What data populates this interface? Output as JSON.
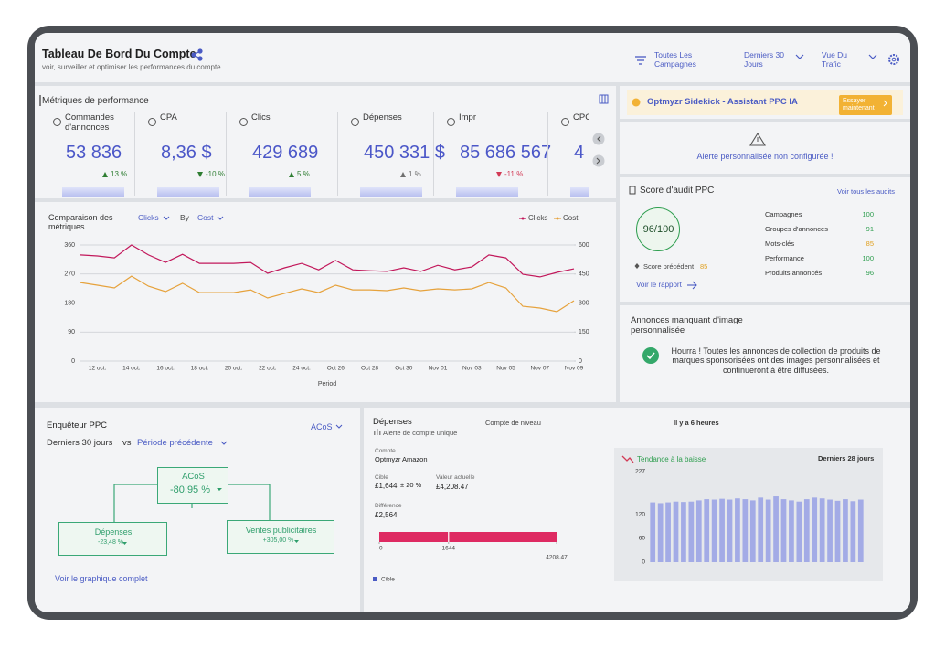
{
  "header": {
    "title": "Tableau De Bord Du Compte",
    "subtitle": "voir, surveiller et optimiser les performances du compte.",
    "filters": [
      "Toutes Les Campagnes",
      "Derniers 30 Jours",
      "Vue Du Trafic"
    ]
  },
  "metrics": {
    "title": "Métriques de performance",
    "cards": [
      {
        "label": "Commandes d'annonces",
        "value": "53 836",
        "change": "13 %",
        "direction": "up",
        "color": "#2e7d32"
      },
      {
        "label": "CPA",
        "value": "8,36 $",
        "change": "-10 %",
        "direction": "down",
        "color": "#2e7d32"
      },
      {
        "label": "Clics",
        "value": "429 689",
        "change": "5 %",
        "direction": "up",
        "color": "#2e7d32"
      },
      {
        "label": "Dépenses",
        "value": "450 331 $",
        "change": "1 %",
        "direction": "up",
        "color": "#6f6f6f"
      },
      {
        "label": "Impr",
        "value": "85 686 567",
        "change": "-11 %",
        "direction": "down",
        "color": "#d23a55"
      },
      {
        "label": "CPC",
        "value": "4"
      }
    ]
  },
  "comparison": {
    "metric": "Clicks",
    "by": "By",
    "second_metric": "Cost"
  },
  "sidekick": {
    "title": "Optmyzr Sidekick - Assistant PPC IA",
    "button": "Essayer maintenant"
  },
  "alert": {
    "text": "Alerte personnalisée non configurée !"
  },
  "audit": {
    "title": "Score d'audit PPC",
    "link": "Voir tous les audits",
    "score": "96/100",
    "previous_label": "Score précédent",
    "previous_score": 85,
    "report_link": "Voir le rapport",
    "items": [
      {
        "label": "Campagnes",
        "score": 100,
        "color": "#2e9e4f"
      },
      {
        "label": "Groupes d'annonces",
        "score": 91,
        "color": "#2e9e4f"
      },
      {
        "label": "Mots-clés",
        "score": 85,
        "color": "#e0a020"
      },
      {
        "label": "Performance",
        "score": 100,
        "color": "#2e9e4f"
      },
      {
        "label": "Produits annoncés",
        "score": 96,
        "color": "#2e9e4f"
      }
    ]
  },
  "images": {
    "title": "Annonces manquant d'image personnalisée",
    "message": "Hourra ! Toutes les annonces de collection de produits de marques sponsorisées ont des images personnalisées et continueront à être diffusées."
  },
  "investigator": {
    "title": "Enquêteur PPC",
    "metric": "ACoS",
    "period": "Derniers 30 jours",
    "vs": "vs",
    "comparison": "Période précédente",
    "root": {
      "label": "ACoS",
      "value": "-80,95 %"
    },
    "children": [
      {
        "label": "Dépenses",
        "value": "-23,48 %"
      },
      {
        "label": "Ventes publicitaires",
        "value": "+305,00 %"
      }
    ],
    "link": "Voir le graphique complet"
  },
  "spend": {
    "title": "Dépenses",
    "alert_type": "Alerte de compte unique",
    "level": "Compte de niveau",
    "updated": "Il y a 6 heures",
    "account_label": "Compte",
    "account": "Optmyzr Amazon",
    "target_label": "Cible",
    "target": "£1,644",
    "tolerance": "± 20 %",
    "current_label": "Valeur actuelle",
    "current": "£4,208.47",
    "difference_label": "Différence",
    "difference": "£2,564"
  },
  "chart_data": [
    {
      "type": "line",
      "title": "Comparaison des métriques",
      "xlabel": "Period",
      "categories": [
        null,
        "12 oct.",
        null,
        "14 oct.",
        null,
        "16 oct.",
        null,
        "18 oct.",
        null,
        "20 oct.",
        null,
        "22 oct.",
        null,
        "24 oct.",
        null,
        "Oct 26",
        null,
        "Oct 28",
        null,
        "Oct 30",
        null,
        "Nov 01",
        null,
        "Nov 03",
        null,
        "Nov 05",
        null,
        "Nov 07",
        null,
        "Nov 09"
      ],
      "series": [
        {
          "name": "Clicks",
          "color": "#c2185b",
          "values": [
            329,
            326,
            320,
            360,
            329,
            306,
            331,
            303,
            303,
            303,
            306,
            272,
            289,
            303,
            283,
            312,
            283,
            280,
            278,
            289,
            278,
            297,
            283,
            292,
            329,
            320,
            269,
            261,
            275,
            286
          ]
        },
        {
          "name": "Cost",
          "color": "#e6a23c",
          "axis": "y2",
          "values": [
            406,
            392,
            378,
            439,
            387,
            359,
            402,
            354,
            354,
            354,
            368,
            326,
            350,
            373,
            354,
            392,
            368,
            368,
            364,
            378,
            364,
            373,
            368,
            373,
            406,
            378,
            283,
            274,
            255,
            312
          ]
        }
      ],
      "ylim": [
        0,
        360
      ],
      "yticks": [
        0,
        90,
        180,
        270,
        360
      ],
      "y2lim": [
        0,
        600
      ],
      "y2ticks": [
        0,
        150,
        300,
        450,
        600
      ],
      "grid": true,
      "legend": "top-right"
    },
    {
      "type": "bullet",
      "values": [
        4208.47
      ],
      "color": "#de2a62",
      "target": 1644,
      "target_name": "Cible",
      "target_color": "#4a5bc4",
      "xlim": [
        0,
        4208.47
      ],
      "xticks": [
        0,
        1644,
        4208.47
      ]
    },
    {
      "type": "bar",
      "title": "Tendance à la baisse",
      "subtitle": "Derniers 28 jours",
      "categories": [
        null,
        null,
        null,
        null,
        null,
        null,
        null,
        null,
        null,
        null,
        null,
        null,
        null,
        null,
        null,
        null,
        null,
        null,
        null,
        null,
        null,
        null,
        null,
        null,
        null,
        null,
        null,
        null
      ],
      "values": [
        150,
        148,
        150,
        152,
        151,
        152,
        155,
        158,
        157,
        159,
        157,
        160,
        158,
        155,
        162,
        157,
        165,
        158,
        155,
        152,
        158,
        162,
        160,
        157,
        154,
        158,
        153,
        157
      ],
      "color": "#a3abe6",
      "ylim": [
        0,
        227
      ],
      "yticks": [
        0,
        60,
        120,
        227
      ],
      "grid": false
    }
  ]
}
